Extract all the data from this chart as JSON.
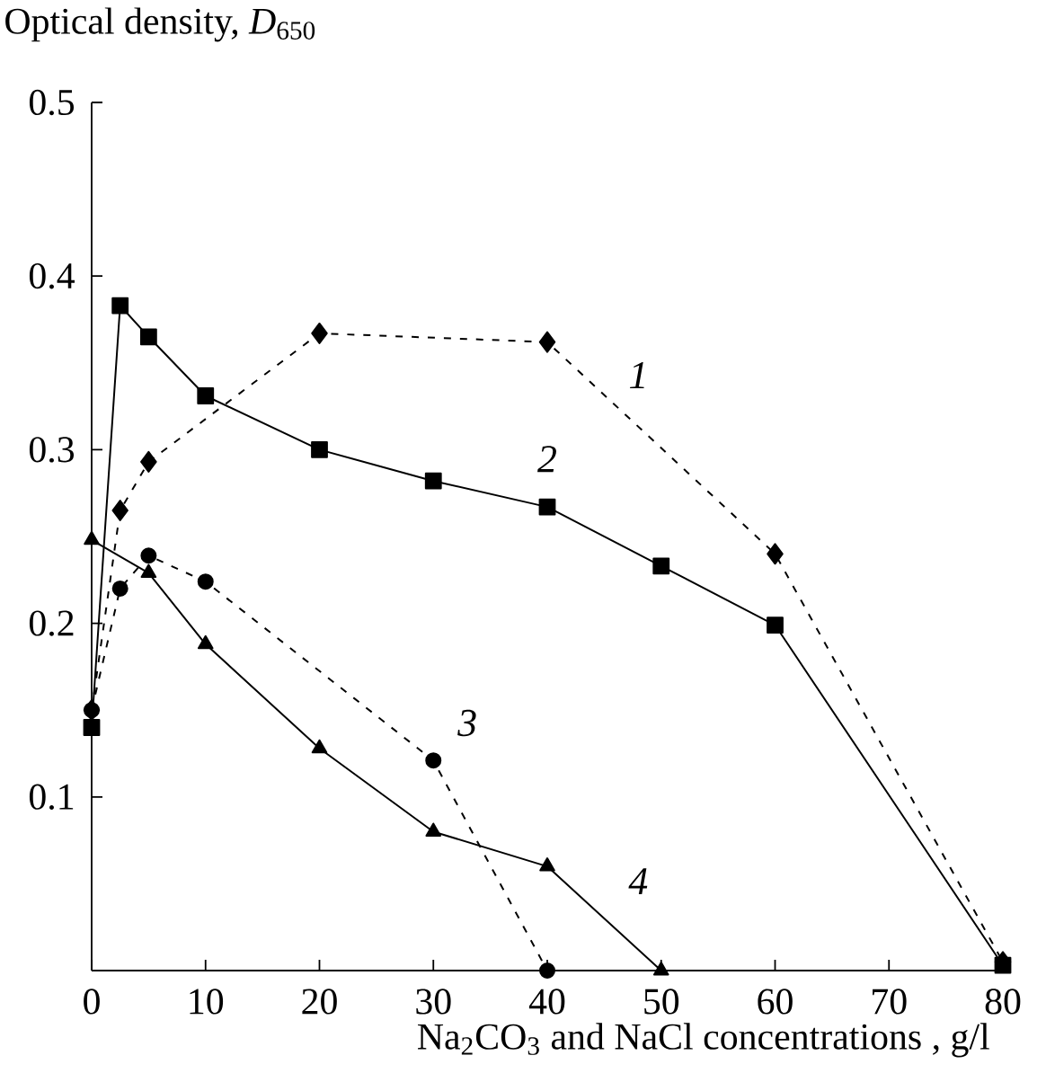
{
  "chart_data": {
    "type": "line",
    "ylabel": "Optical density, *D*$_{650}$",
    "xlabel": "Na$_{2}$CO$_{3}$ and NaCl concentrations , g/l",
    "xlim": [
      0,
      80
    ],
    "ylim": [
      0,
      0.5
    ],
    "xticks": [
      0,
      10,
      20,
      30,
      40,
      50,
      60,
      70,
      80
    ],
    "yticks": [
      {
        "value": 0,
        "label": null
      },
      0.1,
      0.2,
      0.3,
      0.4,
      0.5
    ],
    "grid": false,
    "series": [
      {
        "name": "*1*",
        "color": "#000000",
        "marker": "diamond",
        "line_style": "dashed",
        "x": [
          0,
          2.5,
          5,
          20,
          40,
          60,
          80
        ],
        "values": [
          0.15,
          0.265,
          0.293,
          0.367,
          0.362,
          0.24,
          0.005
        ]
      },
      {
        "name": "*2*",
        "color": "#000000",
        "marker": "square",
        "line_style": "solid",
        "x": [
          0,
          2.5,
          5,
          10,
          20,
          30,
          40,
          50,
          60,
          80
        ],
        "values": [
          0.14,
          0.383,
          0.365,
          0.331,
          0.3,
          0.282,
          0.267,
          0.233,
          0.199,
          0.003
        ]
      },
      {
        "name": "*3*",
        "color": "#000000",
        "marker": "circle",
        "line_style": "dashed",
        "x": [
          0,
          2.5,
          5,
          10,
          30,
          40
        ],
        "values": [
          0.15,
          0.22,
          0.239,
          0.224,
          0.121,
          0
        ]
      },
      {
        "name": "*4*",
        "color": "#000000",
        "marker": "triangle",
        "line_style": "solid",
        "x": [
          0,
          5,
          10,
          20,
          30,
          40,
          50
        ],
        "values": [
          0.248,
          0.229,
          0.188,
          0.128,
          0.08,
          0.06,
          0
        ]
      }
    ]
  }
}
